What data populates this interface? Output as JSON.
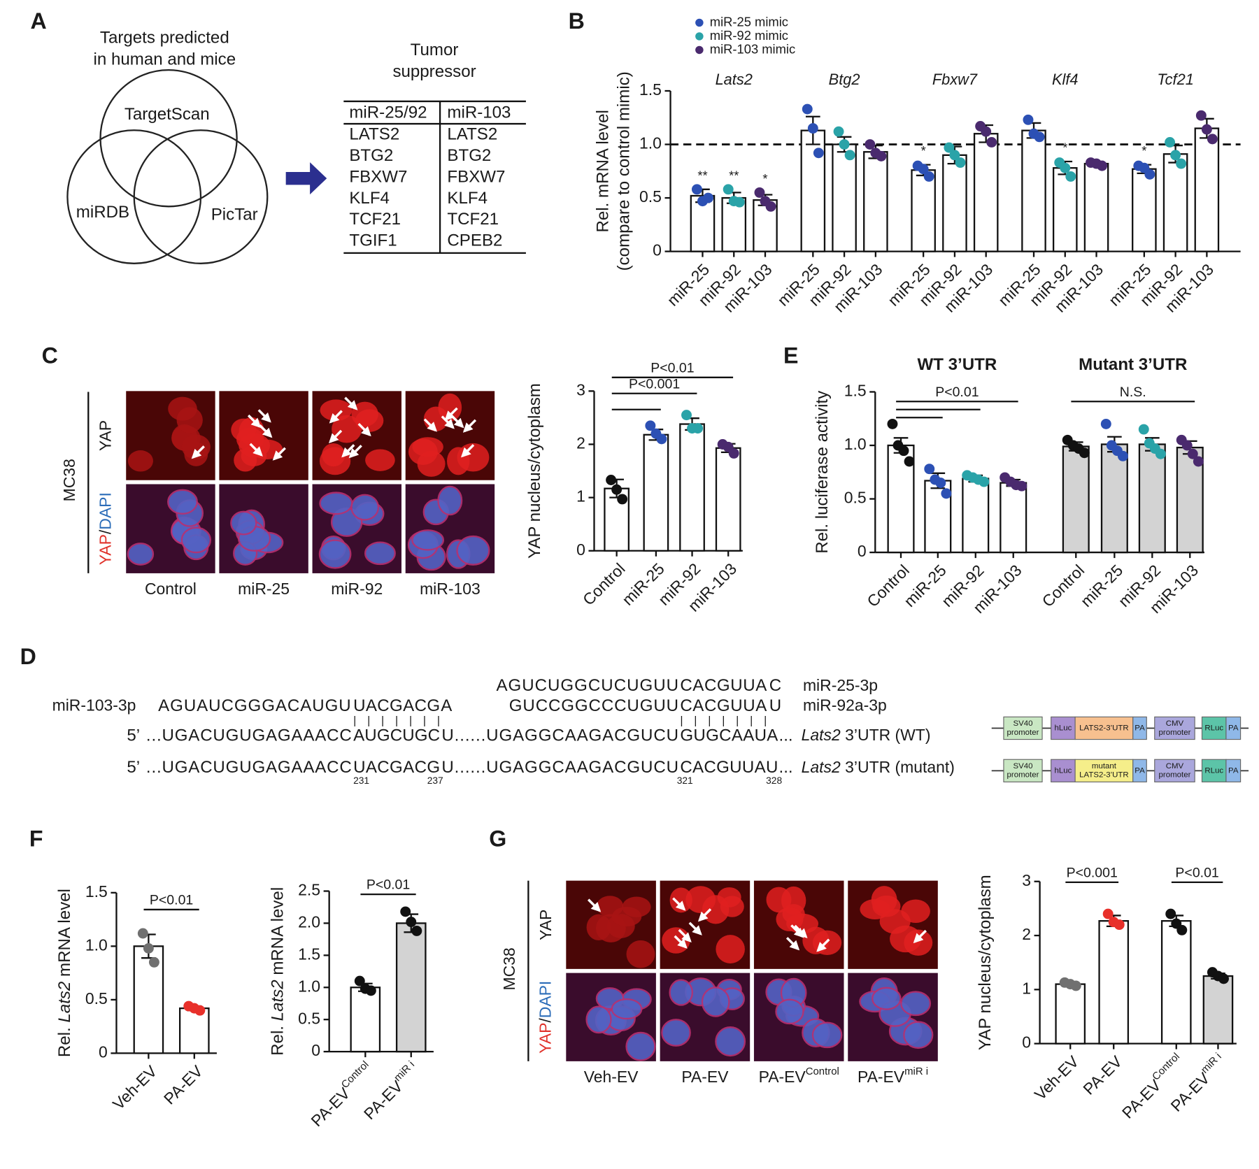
{
  "panel_labels": [
    "A",
    "B",
    "C",
    "D",
    "E",
    "F",
    "G"
  ],
  "venn": {
    "title_lines": [
      "Targets predicted",
      "in human and mice"
    ],
    "sets": [
      "TargetScan",
      "miRDB",
      "PicTar"
    ]
  },
  "target_table": {
    "title_lines": [
      "Tumor",
      "suppressor"
    ],
    "headers": [
      "miR-25/92",
      "miR-103"
    ],
    "header_color": "#2b6cb8",
    "rows": [
      [
        "LATS2",
        "LATS2"
      ],
      [
        "BTG2",
        "BTG2"
      ],
      [
        "FBXW7",
        "FBXW7"
      ],
      [
        "KLF4",
        "KLF4"
      ],
      [
        "TCF21",
        "TCF21"
      ],
      [
        "TGIF1",
        "CPEB2"
      ]
    ],
    "highlight_rows": [
      0
    ],
    "highlight_color": "#e0312a"
  },
  "micrographs": {
    "cell_line": "MC38",
    "stain": "YAP",
    "separator": "/",
    "counterstain": "DAPI",
    "stain_color": "#e0312a",
    "counterstain_color": "#2b6cb8"
  },
  "sequences": {
    "mirnas": [
      {
        "name": "miR-103-3p",
        "segments": [
          {
            "text": "AGUAUCGGGACAUGU"
          },
          {
            "text": "UACGACG",
            "color": "#2b6cb8"
          },
          {
            "text": "A"
          }
        ]
      },
      {
        "name": "miR-25-3p",
        "segments": [
          {
            "text": "AGUCUGGCUCUGUU"
          },
          {
            "text": "CACGUUA",
            "color": "#2b6cb8"
          },
          {
            "text": "C"
          }
        ]
      },
      {
        "name": "miR-92a-3p",
        "segments": [
          {
            "text": "GUCCGGCCCUGUU"
          },
          {
            "text": "CACGUUA",
            "color": "#2b6cb8"
          },
          {
            "text": "U"
          }
        ]
      }
    ],
    "pairing": "| | | | | | |",
    "targets": [
      {
        "prefix": "5’",
        "segments": [
          {
            "text": "...UGACUGUGAGAAACC"
          },
          {
            "text": "AUGCUGC",
            "color": "#2a9a3a"
          },
          {
            "text": "U......UGAGGCAAGACGUCU"
          },
          {
            "text": "GUGCAAUA",
            "color": "#2a9a3a"
          },
          {
            "text": "..."
          }
        ],
        "name": [
          {
            "text": "Lats2",
            "italic": true
          },
          {
            "text": " 3’UTR (WT)"
          }
        ]
      },
      {
        "prefix": "5’",
        "segments": [
          {
            "text": "...UGACUGUGAGAAACC"
          },
          {
            "text": "UACGACG",
            "color": "#e0312a"
          },
          {
            "text": "U......UGAGGCAAGACGUCU"
          },
          {
            "text": "CACGUUAU",
            "color": "#e0312a"
          },
          {
            "text": "..."
          }
        ],
        "name": [
          {
            "text": "Lats2",
            "italic": true
          },
          {
            "text": " 3’UTR (mutant)"
          }
        ],
        "positions": [
          231,
          237,
          321,
          328
        ]
      }
    ]
  },
  "constructs": [
    {
      "parts": [
        {
          "lines": [
            "SV40",
            "promoter"
          ],
          "color": "#c9e7c3"
        },
        {
          "lines": [
            "hLuc"
          ],
          "color": "#a98fd0"
        },
        {
          "lines": [
            "LATS2-3’UTR"
          ],
          "color": "#f7c08f"
        },
        {
          "lines": [
            "PA"
          ],
          "color": "#8fb8e8"
        },
        {
          "lines": [
            "CMV",
            "promoter"
          ],
          "color": "#aaa7dc"
        },
        {
          "lines": [
            "RLuc"
          ],
          "color": "#5cc4a8"
        },
        {
          "lines": [
            "PA"
          ],
          "color": "#8fb8e8"
        }
      ]
    },
    {
      "parts": [
        {
          "lines": [
            "SV40",
            "promoter"
          ],
          "color": "#c9e7c3"
        },
        {
          "lines": [
            "hLuc"
          ],
          "color": "#a98fd0"
        },
        {
          "lines": [
            "mutant",
            "LATS2-3’UTR"
          ],
          "color": "#f5ee8a"
        },
        {
          "lines": [
            "PA"
          ],
          "color": "#8fb8e8"
        },
        {
          "lines": [
            "CMV",
            "promoter"
          ],
          "color": "#aaa7dc"
        },
        {
          "lines": [
            "RLuc"
          ],
          "color": "#5cc4a8"
        },
        {
          "lines": [
            "PA"
          ],
          "color": "#8fb8e8"
        }
      ]
    }
  ],
  "chart_data": [
    {
      "type": "grouped-bar",
      "ylabel_lines": [
        "Rel. mRNA level",
        "(compare to control mimic)"
      ],
      "categories": [
        "Lats2",
        "Btg2",
        "Fbxw7",
        "Klf4",
        "Tcf21"
      ],
      "bar_labels": [
        "miR-25",
        "miR-92",
        "miR-103"
      ],
      "bar_fill": "#ffffff",
      "series": [
        {
          "name": "miR-25 mimic",
          "color": "#2c50b4",
          "values": [
            0.52,
            1.13,
            0.76,
            1.13,
            0.77
          ],
          "errors": [
            0.06,
            0.13,
            0.05,
            0.07,
            0.04
          ],
          "points": [
            [
              0.58,
              0.47,
              0.5
            ],
            [
              1.33,
              1.15,
              0.92
            ],
            [
              0.8,
              0.77,
              0.7
            ],
            [
              1.23,
              1.1,
              1.07
            ],
            [
              0.8,
              0.78,
              0.72
            ]
          ],
          "significance": [
            "**",
            null,
            "*",
            null,
            "*"
          ]
        },
        {
          "name": "miR-92 mimic",
          "color": "#2aa3a8",
          "values": [
            0.5,
            1.0,
            0.9,
            0.78,
            0.91
          ],
          "errors": [
            0.05,
            0.07,
            0.08,
            0.06,
            0.08
          ],
          "points": [
            [
              0.58,
              0.47,
              0.46
            ],
            [
              1.12,
              1.0,
              0.9
            ],
            [
              0.97,
              0.9,
              0.83
            ],
            [
              0.83,
              0.78,
              0.7
            ],
            [
              1.02,
              0.9,
              0.82
            ]
          ],
          "significance": [
            "**",
            null,
            null,
            "*",
            null
          ]
        },
        {
          "name": "miR-103 mimic",
          "color": "#4a2a6e",
          "values": [
            0.48,
            0.93,
            1.1,
            0.82,
            1.15
          ],
          "errors": [
            0.05,
            0.06,
            0.08,
            0.02,
            0.09
          ],
          "points": [
            [
              0.55,
              0.47,
              0.42
            ],
            [
              1.0,
              0.92,
              0.89
            ],
            [
              1.17,
              1.12,
              1.02
            ],
            [
              0.83,
              0.82,
              0.8
            ],
            [
              1.27,
              1.14,
              1.05
            ]
          ],
          "significance": [
            "*",
            null,
            null,
            null,
            null
          ]
        }
      ],
      "ylim": [
        0,
        1.5
      ],
      "yticks": [
        0,
        0.5,
        {
          "value": 1,
          "label": "1.0"
        },
        1.5
      ],
      "reference_line": 1
    },
    {
      "type": "bar",
      "ylabel": "YAP nucleus/cytoplasm",
      "categories": [
        "Control",
        "miR-25",
        "miR-92",
        "miR-103"
      ],
      "values": [
        1.17,
        2.18,
        2.38,
        1.93
      ],
      "errors": [
        0.17,
        0.1,
        0.11,
        0.08
      ],
      "points": [
        [
          1.33,
          1.15,
          0.97
        ],
        [
          2.35,
          2.2,
          2.1
        ],
        [
          2.55,
          2.3,
          2.3
        ],
        [
          2.0,
          1.95,
          1.83
        ]
      ],
      "bar_colors": [
        "#ffffff",
        "#ffffff",
        "#ffffff",
        "#ffffff"
      ],
      "point_colors": [
        "#111111",
        "#2c50b4",
        "#2aa3a8",
        "#4a2a6e"
      ],
      "ylim": [
        0,
        3
      ],
      "yticks": [
        0,
        1,
        2,
        3
      ],
      "comparisons": [
        {
          "from": 0,
          "to": 3,
          "label": "P<0.01"
        },
        {
          "from": 0,
          "to": 2,
          "label": "P<0.001"
        },
        {
          "from": 0,
          "to": 1
        }
      ]
    },
    {
      "type": "bar",
      "ylabel": "Rel. luciferase activity",
      "categories": [
        "Control",
        "miR-25",
        "miR-92",
        "miR-103",
        "Control",
        "miR-25",
        "miR-92",
        "miR-103"
      ],
      "groups": [
        {
          "name": "WT 3’UTR",
          "from": 0,
          "to": 3
        },
        {
          "name": "Mutant 3’UTR",
          "from": 4,
          "to": 7
        }
      ],
      "values": [
        1.0,
        0.67,
        0.69,
        0.65,
        0.99,
        1.01,
        1.01,
        0.98
      ],
      "errors": [
        0.07,
        0.07,
        0.03,
        0.03,
        0.04,
        0.07,
        0.06,
        0.06
      ],
      "points": [
        [
          1.2,
          1.0,
          0.95,
          0.85
        ],
        [
          0.78,
          0.68,
          0.65,
          0.55
        ],
        [
          0.72,
          0.7,
          0.68,
          0.66
        ],
        [
          0.7,
          0.66,
          0.63,
          0.62
        ],
        [
          1.05,
          1.0,
          0.97,
          0.93
        ],
        [
          1.2,
          1.0,
          0.95,
          0.9
        ],
        [
          1.15,
          1.02,
          0.97,
          0.92
        ],
        [
          1.05,
          1.0,
          0.92,
          0.85
        ]
      ],
      "bar_colors": [
        "#ffffff",
        "#ffffff",
        "#ffffff",
        "#ffffff",
        "#d3d3d3",
        "#d3d3d3",
        "#d3d3d3",
        "#d3d3d3"
      ],
      "point_colors": [
        "#111111",
        "#2c50b4",
        "#2aa3a8",
        "#4a2a6e",
        "#111111",
        "#2c50b4",
        "#2aa3a8",
        "#4a2a6e"
      ],
      "ylim": [
        0,
        1.5
      ],
      "yticks": [
        0,
        0.5,
        {
          "value": 1,
          "label": "1.0"
        },
        1.5
      ],
      "comparisons": [
        {
          "from": 0,
          "to": 3,
          "label": "P<0.01"
        },
        {
          "from": 0,
          "to": 2
        },
        {
          "from": 0,
          "to": 1
        },
        {
          "from": 4,
          "to": 7,
          "label": "N.S."
        }
      ]
    },
    {
      "type": "bar",
      "ylabel_parts": [
        {
          "text": "Rel. "
        },
        {
          "text": "Lats2",
          "italic": true
        },
        {
          "text": " mRNA level"
        }
      ],
      "categories": [
        "Veh-EV",
        "PA-EV"
      ],
      "values": [
        1.0,
        0.42
      ],
      "errors": [
        0.11,
        0.02
      ],
      "points": [
        [
          1.12,
          0.98,
          0.85
        ],
        [
          0.44,
          0.42,
          0.4
        ]
      ],
      "bar_colors": [
        "#ffffff",
        "#ffffff"
      ],
      "point_colors": [
        "#707070",
        "#e8302a"
      ],
      "ylim": [
        0,
        1.5
      ],
      "yticks": [
        0,
        0.5,
        {
          "value": 1,
          "label": "1.0"
        },
        1.5
      ],
      "comparisons": [
        {
          "from": 0,
          "to": 1,
          "label": "P<0.01"
        }
      ]
    },
    {
      "type": "bar",
      "ylabel_parts": [
        {
          "text": "Rel. "
        },
        {
          "text": "Lats2",
          "italic": true
        },
        {
          "text": " mRNA level"
        }
      ],
      "categories": [
        "PA-EV",
        "PA-EV"
      ],
      "category_superscripts": [
        "Control",
        "miR i"
      ],
      "values": [
        1.0,
        2.0
      ],
      "errors": [
        0.06,
        0.14
      ],
      "points": [
        [
          1.1,
          0.98,
          0.95
        ],
        [
          2.18,
          2.02,
          1.88
        ]
      ],
      "bar_colors": [
        "#ffffff",
        "#d3d3d3"
      ],
      "point_colors": [
        "#111111",
        "#111111"
      ],
      "ylim": [
        0,
        2.5
      ],
      "yticks": [
        0,
        0.5,
        {
          "value": 1,
          "label": "1.0"
        },
        1.5,
        {
          "value": 2,
          "label": "2.0"
        },
        2.5
      ],
      "comparisons": [
        {
          "from": 0,
          "to": 1,
          "label": "P<0.01"
        }
      ]
    },
    {
      "type": "bar",
      "ylabel": "YAP nucleus/cytoplasm",
      "categories": [
        "Veh-EV",
        "PA-EV",
        "PA-EV",
        "PA-EV"
      ],
      "category_superscripts": [
        null,
        null,
        "Control",
        "miR i"
      ],
      "values": [
        1.1,
        2.27,
        2.27,
        1.25
      ],
      "errors": [
        0.03,
        0.1,
        0.1,
        0.05
      ],
      "points": [
        [
          1.13,
          1.1,
          1.07
        ],
        [
          2.4,
          2.25,
          2.2
        ],
        [
          2.4,
          2.22,
          2.1
        ],
        [
          1.32,
          1.25,
          1.2
        ]
      ],
      "bar_colors": [
        "#ffffff",
        "#ffffff",
        "#ffffff",
        "#d3d3d3"
      ],
      "point_colors": [
        "#707070",
        "#e8302a",
        "#111111",
        "#111111"
      ],
      "ylim": [
        0,
        3
      ],
      "yticks": [
        0,
        1,
        2,
        3
      ],
      "comparisons": [
        {
          "from": 0,
          "to": 1,
          "label": "P<0.001"
        },
        {
          "from": 2,
          "to": 3,
          "label": "P<0.01"
        }
      ]
    }
  ]
}
